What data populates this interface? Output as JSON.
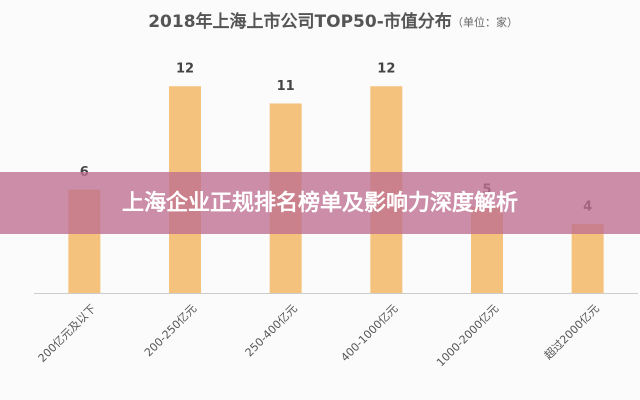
{
  "chart_data": {
    "type": "bar",
    "title": "2018年上海上市公司TOP50-市值分布",
    "subtitle": "（单位：家）",
    "categories": [
      "200亿元及以下",
      "200-250亿元",
      "250-400亿元",
      "400-1000亿元",
      "1000-2000亿元",
      "超过2000亿元"
    ],
    "values": [
      6,
      12,
      11,
      12,
      5,
      4
    ],
    "color": "#f4c27c",
    "ylim": [
      0,
      13
    ],
    "data_labels": true
  },
  "overlay": {
    "headline": "上海企业正规排名榜单及影响力深度解析"
  }
}
